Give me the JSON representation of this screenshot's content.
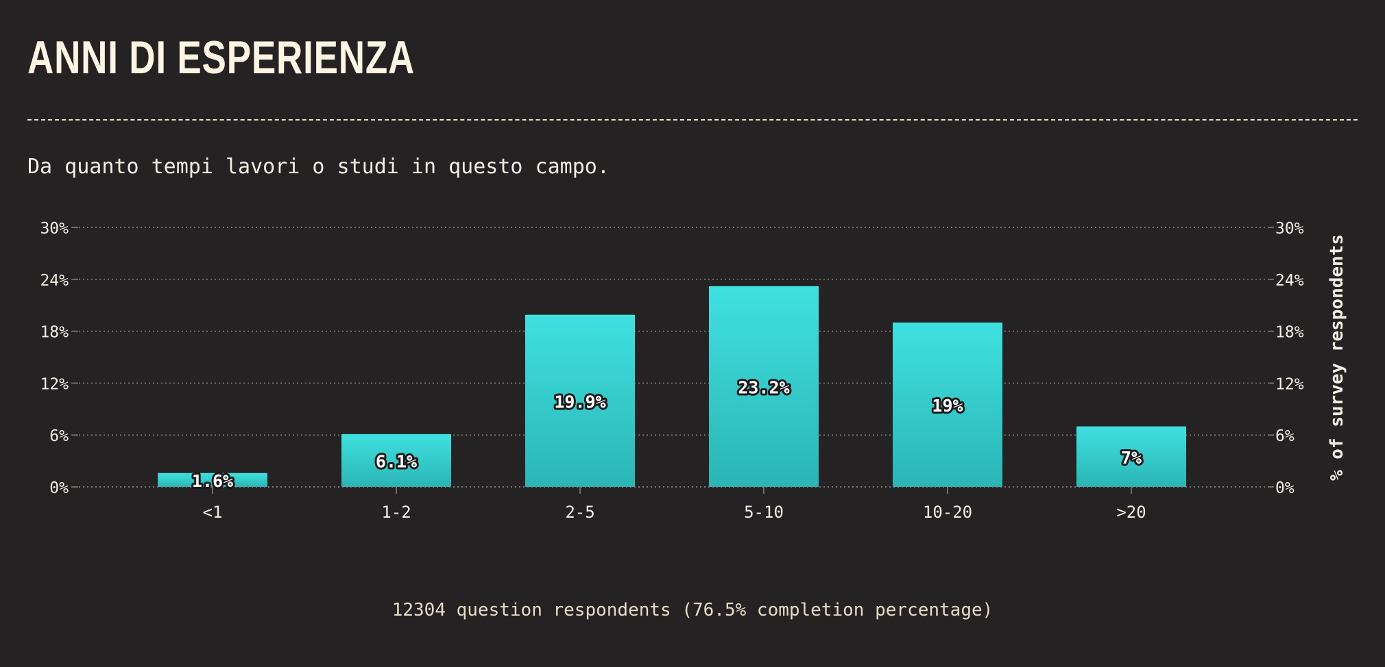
{
  "title": "ANNI DI ESPERIENZA",
  "subtitle": "Da quanto tempi lavori o studi in questo campo.",
  "footer": "12304 question respondents (76.5% completion percentage)",
  "colors": {
    "background": "#252223",
    "bar_top": "#40e0e0",
    "bar_bottom": "#2bb5b5",
    "text": "#f3efe6",
    "grid": "#8a8580"
  },
  "chart_data": {
    "type": "bar",
    "categories": [
      "<1",
      "1-2",
      "2-5",
      "5-10",
      "10-20",
      ">20"
    ],
    "values": [
      1.6,
      6.1,
      19.9,
      23.2,
      19,
      7
    ],
    "data_labels": [
      "1.6%",
      "6.1%",
      "19.9%",
      "23.2%",
      "19%",
      "7%"
    ],
    "ylim": [
      0,
      30
    ],
    "yticks": [
      0,
      6,
      12,
      18,
      24,
      30
    ],
    "ytick_labels": [
      "0%",
      "6%",
      "12%",
      "18%",
      "24%",
      "30%"
    ],
    "ylabel": "% of survey respondents",
    "xlabel": "",
    "grid": true,
    "right_axis": true
  }
}
